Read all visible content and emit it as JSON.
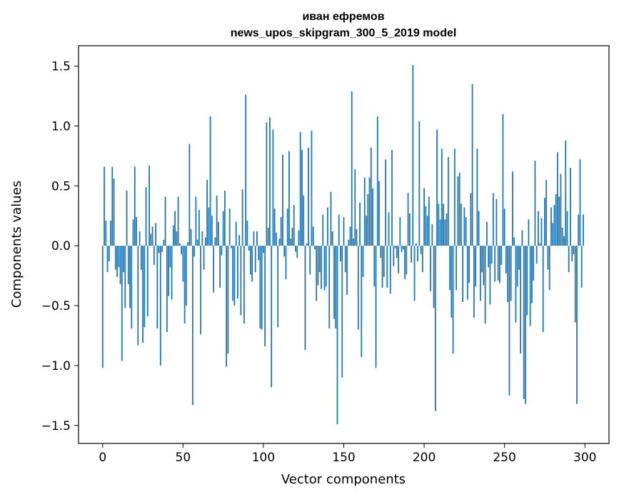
{
  "chart_data": {
    "type": "bar",
    "title": "иван ефремов",
    "subtitle": "news_upos_skipgram_300_5_2019 model",
    "xlabel": "Vector components",
    "ylabel": "Components values",
    "xlim": [
      -15,
      315
    ],
    "ylim": [
      -1.65,
      1.67
    ],
    "x_ticks": [
      0,
      50,
      100,
      150,
      200,
      250,
      300
    ],
    "x_tick_labels": [
      "0",
      "50",
      "100",
      "150",
      "200",
      "250",
      "300"
    ],
    "y_ticks": [
      -1.5,
      -1.0,
      -0.5,
      0.0,
      0.5,
      1.0,
      1.5
    ],
    "y_tick_labels": [
      "−1.5",
      "−1.0",
      "−0.5",
      "0.0",
      "0.5",
      "1.0",
      "1.5"
    ],
    "grid": false,
    "bar_color": "#1f77b4",
    "x_start": 0,
    "values": [
      -1.02,
      0.66,
      0.21,
      -0.22,
      -0.13,
      0.21,
      0.66,
      0.56,
      -0.2,
      -0.26,
      -0.18,
      -0.32,
      -0.96,
      -0.22,
      -0.52,
      0.46,
      -0.32,
      -0.52,
      -0.69,
      0.22,
      0.66,
      0.24,
      -0.83,
      0.12,
      -0.2,
      -0.81,
      -0.68,
      0.49,
      -0.59,
      0.67,
      0.1,
      0.16,
      -0.16,
      0.19,
      -0.69,
      -0.06,
      -1.0,
      -0.05,
      0.05,
      0.41,
      -0.72,
      -0.42,
      -0.18,
      -0.45,
      0.17,
      0.29,
      0.12,
      0.41,
      0.02,
      -0.07,
      -0.3,
      -0.65,
      -0.5,
      0.03,
      0.85,
      0.14,
      -1.33,
      -0.09,
      0.41,
      0.05,
      0.3,
      -0.74,
      0.12,
      -0.2,
      0.07,
      0.55,
      0.32,
      1.08,
      0.25,
      -0.39,
      0.07,
      0.42,
      0.2,
      -0.35,
      -0.08,
      0.29,
      0.46,
      -1.01,
      -0.9,
      0.31,
      -0.02,
      -0.46,
      -0.5,
      0.2,
      -0.44,
      0.09,
      -0.58,
      0.47,
      -0.65,
      1.26,
      0.21,
      -0.04,
      -0.24,
      -0.3,
      0.12,
      -0.22,
      0.12,
      -0.12,
      -0.69,
      -0.7,
      -0.06,
      -0.84,
      1.03,
      0.15,
      1.07,
      -1.18,
      0.97,
      0.31,
      0.11,
      -0.68,
      0.06,
      0.24,
      0.76,
      -0.09,
      -0.28,
      0.31,
      0.79,
      0.06,
      0.15,
      0.34,
      -0.05,
      -0.1,
      0.13,
      0.95,
      0.8,
      0.42,
      -0.87,
      0.02,
      0.82,
      -0.24,
      0.96,
      0.16,
      -0.03,
      -0.46,
      -0.33,
      -0.22,
      -0.36,
      0.26,
      -0.37,
      -0.34,
      0.32,
      -0.69,
      0.45,
      0.12,
      -0.61,
      -0.69,
      -1.49,
      0.26,
      -0.13,
      -1.1,
      0.24,
      -0.22,
      -0.41,
      0.05,
      0.16,
      1.29,
      0.06,
      0.64,
      0.14,
      -0.7,
      0.36,
      -0.93,
      -0.26,
      0.57,
      0.25,
      0.43,
      0.57,
      0.82,
      0.48,
      -0.34,
      -1.02,
      1.08,
      0.54,
      -0.1,
      -0.35,
      -0.26,
      0.72,
      -0.35,
      0.28,
      -0.4,
      0.8,
      -0.17,
      -0.02,
      -0.1,
      -0.23,
      0.24,
      -0.05,
      -0.03,
      -0.28,
      -0.24,
      0.44,
      0.27,
      -0.14,
      1.51,
      -0.46,
      0.02,
      -0.13,
      1.04,
      -0.07,
      -0.22,
      0.48,
      0.33,
      0.25,
      0.41,
      -0.38,
      0.18,
      -0.52,
      -1.38,
      0.97,
      0.35,
      0.22,
      0.81,
      0.35,
      0.22,
      0.27,
      0.74,
      -0.37,
      -0.6,
      -0.9,
      0.81,
      -0.37,
      0.58,
      0.61,
      0.35,
      -0.47,
      0.32,
      0.24,
      -0.45,
      -0.31,
      0.44,
      1.35,
      -0.6,
      -0.34,
      0.81,
      0.29,
      -0.46,
      -0.22,
      -0.33,
      -0.65,
      0.2,
      -0.18,
      -0.49,
      -0.15,
      0.44,
      -0.3,
      0.39,
      -0.29,
      -0.31,
      -0.16,
      1.1,
      0.31,
      -0.23,
      -0.47,
      -1.25,
      -0.46,
      0.62,
      0.07,
      -0.64,
      -0.34,
      -0.2,
      -0.9,
      0.13,
      -1.28,
      -1.32,
      -0.58,
      0.22,
      -0.67,
      -0.48,
      -0.29,
      0.71,
      -0.15,
      0.29,
      0.02,
      0.23,
      -0.72,
      0.4,
      0.55,
      -0.2,
      -0.37,
      0.32,
      0.19,
      0.34,
      0.43,
      0.78,
      0.41,
      0.6,
      0.15,
      0.08,
      0.88,
      0.29,
      -0.22,
      0.65,
      -0.13,
      -0.07,
      -0.64,
      -1.32,
      0.26,
      0.72,
      -0.35,
      0.26
    ]
  }
}
